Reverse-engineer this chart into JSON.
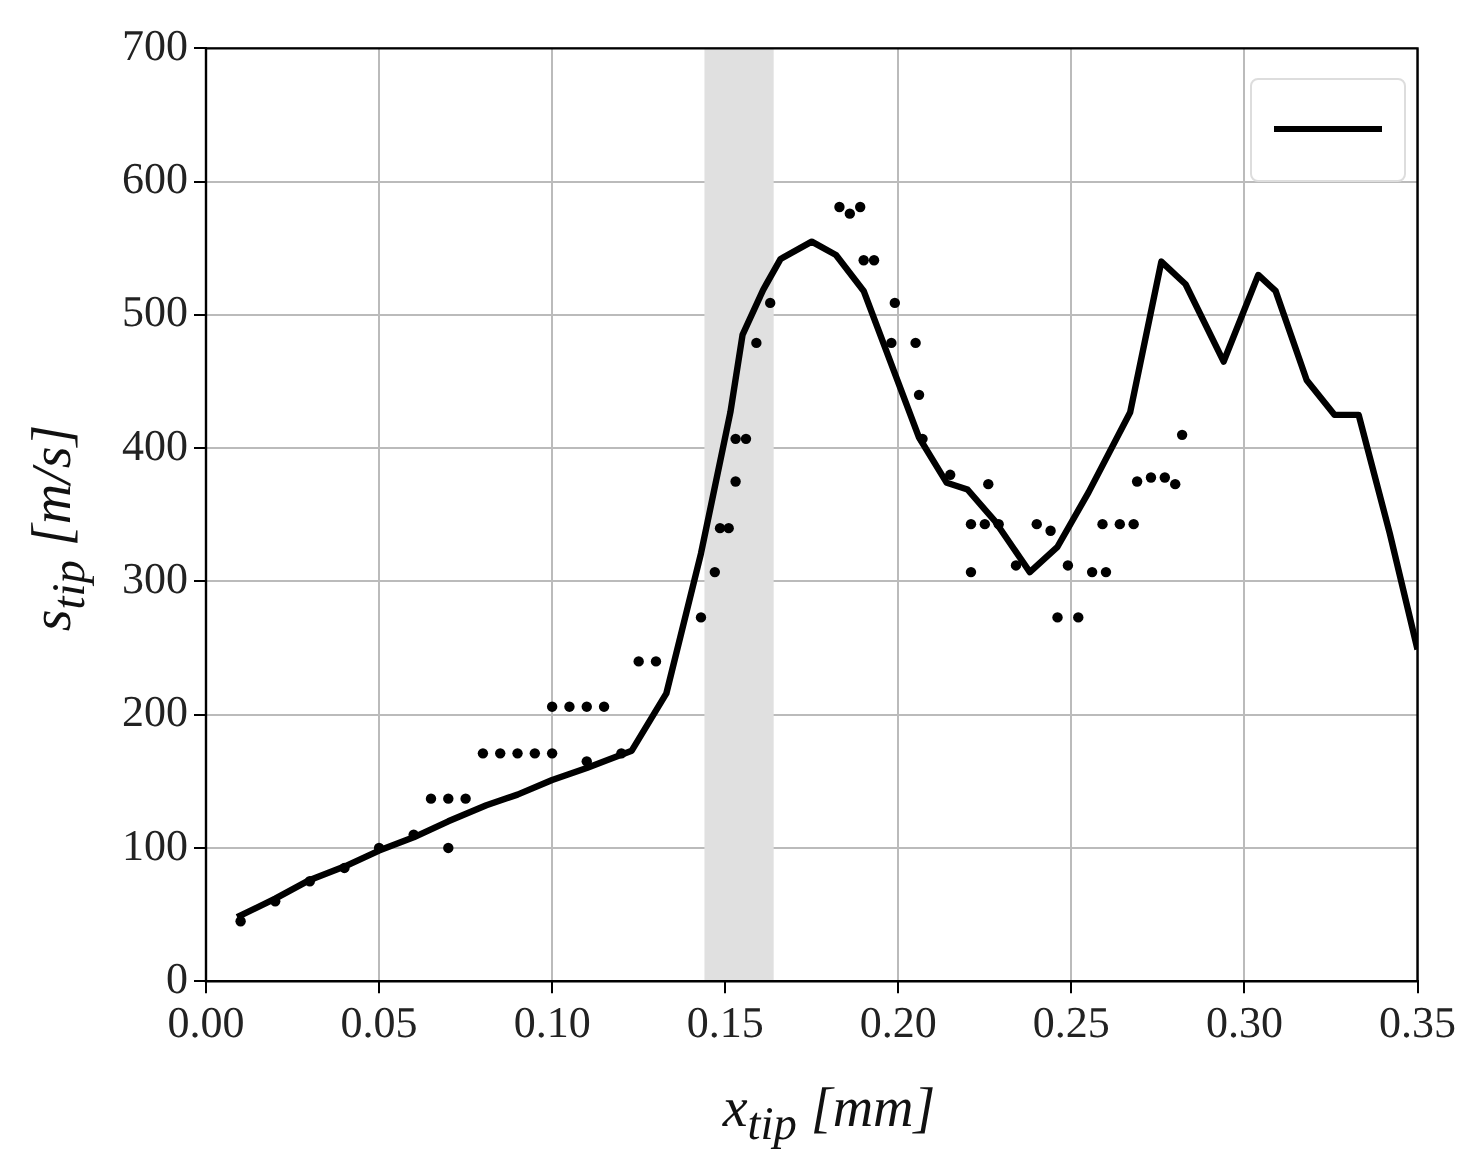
{
  "chart_data": {
    "type": "line",
    "xlabel": "x$_{tip}$ [mm]",
    "ylabel": "s$_{tip}$ [m/s]",
    "xlim": [
      0,
      0.35
    ],
    "ylim": [
      0,
      700
    ],
    "xticks": [
      {
        "value": 0,
        "label": "0.00"
      },
      {
        "value": 0.05,
        "label": "0.05"
      },
      {
        "value": 0.1,
        "label": "0.10"
      },
      {
        "value": 0.15,
        "label": "0.15"
      },
      {
        "value": 0.2,
        "label": "0.20"
      },
      {
        "value": 0.25,
        "label": "0.25"
      },
      {
        "value": 0.3,
        "label": "0.30"
      },
      {
        "value": 0.35,
        "label": "0.35"
      }
    ],
    "yticks": [
      0,
      100,
      200,
      300,
      400,
      500,
      600,
      700
    ],
    "grid": true,
    "bands": [
      {
        "axis": "x",
        "from": 0.144,
        "to": 0.164,
        "color": "#e0e0e0"
      }
    ],
    "series": [
      {
        "color": "#000000",
        "marker": "none",
        "x": [
          0.009,
          0.02,
          0.03,
          0.04,
          0.05,
          0.06,
          0.07,
          0.081,
          0.09,
          0.1,
          0.11,
          0.123,
          0.133,
          0.143,
          0.1515,
          0.155,
          0.161,
          0.166,
          0.175,
          0.182,
          0.19,
          0.206,
          0.214,
          0.22,
          0.228,
          0.238,
          0.246,
          0.255,
          0.267,
          0.276,
          0.283,
          0.294,
          0.304,
          0.309,
          0.318,
          0.326,
          0.333,
          0.342,
          0.35
        ],
        "values": [
          48,
          62,
          76,
          86,
          98,
          108,
          120,
          132,
          140,
          151,
          160,
          173,
          216,
          321,
          427,
          485,
          519,
          542,
          555,
          545,
          518,
          408,
          374,
          369,
          345,
          307,
          326,
          367,
          427,
          540,
          523,
          465,
          530,
          518,
          451,
          425,
          425,
          336,
          249
        ]
      },
      {
        "type": "scatter",
        "color": "#000000",
        "marker": "circle",
        "x": [
          0.01,
          0.02,
          0.03,
          0.04,
          0.05,
          0.06,
          0.065,
          0.07,
          0.07,
          0.075,
          0.08,
          0.085,
          0.09,
          0.095,
          0.1,
          0.105,
          0.11,
          0.115,
          0.12,
          0.1,
          0.11,
          0.125,
          0.13,
          0.143,
          0.147,
          0.1485,
          0.151,
          0.153,
          0.153,
          0.156,
          0.159,
          0.163,
          0.183,
          0.186,
          0.189,
          0.19,
          0.193,
          0.199,
          0.198,
          0.205,
          0.206,
          0.207,
          0.215,
          0.226,
          0.221,
          0.225,
          0.229,
          0.221,
          0.234,
          0.24,
          0.244,
          0.246,
          0.252,
          0.249,
          0.256,
          0.26,
          0.259,
          0.264,
          0.268,
          0.269,
          0.273,
          0.277,
          0.28,
          0.282
        ],
        "values": [
          45,
          60,
          75,
          85,
          100,
          110,
          137,
          137,
          100,
          137,
          171,
          171,
          171,
          171,
          206,
          206,
          206,
          206,
          171,
          171,
          165,
          240,
          240,
          273,
          307,
          340,
          340,
          375,
          407,
          407,
          479,
          509,
          581,
          576,
          581,
          541,
          541,
          509,
          479,
          479,
          440,
          407,
          380,
          373,
          343,
          343,
          343,
          307,
          312,
          343,
          338,
          273,
          273,
          312,
          307,
          307,
          343,
          343,
          343,
          375,
          378,
          378,
          373,
          410
        ]
      }
    ]
  }
}
